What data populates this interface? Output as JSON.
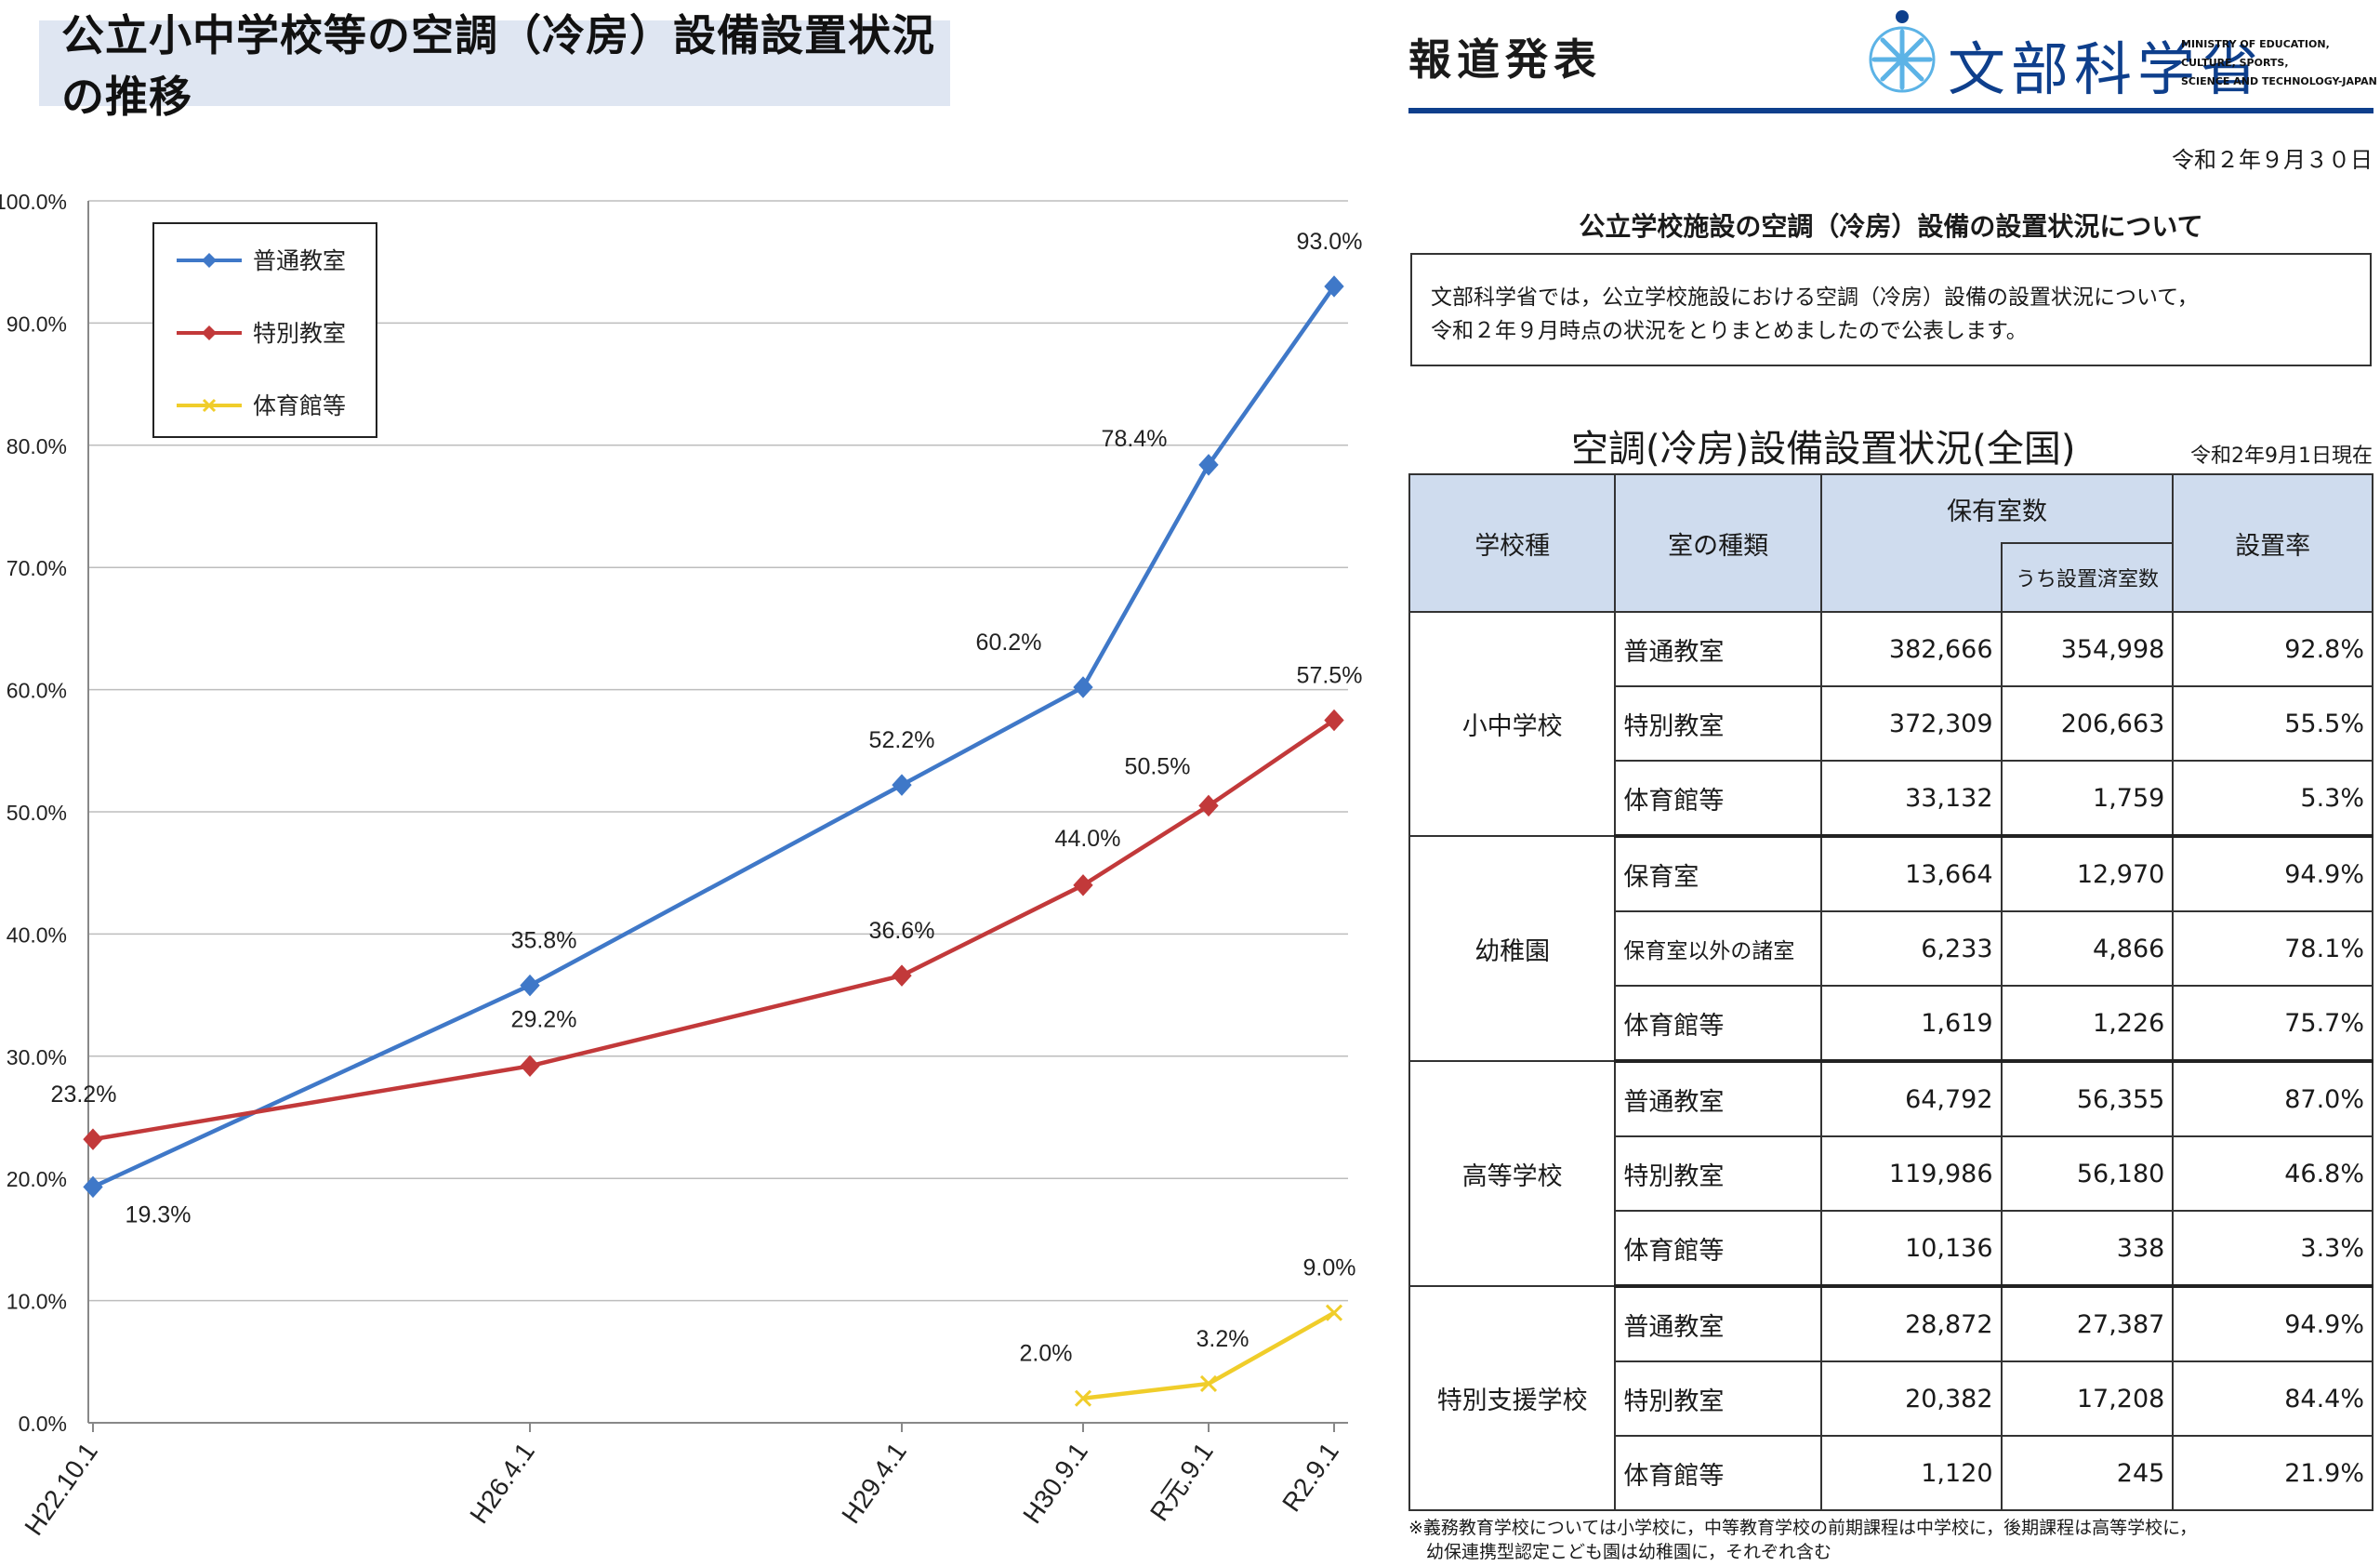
{
  "chart_title": "公立小中学校等の空調（冷房）設備設置状況の推移",
  "chart_data": {
    "type": "line",
    "categories": [
      "H22.10.1",
      "H26.4.1",
      "H29.4.1",
      "H30.9.1",
      "R元.9.1",
      "R2.9.1"
    ],
    "ylim": [
      0,
      100
    ],
    "ytick_labels": [
      "0.0%",
      "10.0%",
      "20.0%",
      "30.0%",
      "40.0%",
      "50.0%",
      "60.0%",
      "70.0%",
      "80.0%",
      "90.0%",
      "100.0%"
    ],
    "grid": true,
    "legend_position": "top-left",
    "series": [
      {
        "name": "普通教室",
        "color": "#3f78c8",
        "values": [
          19.3,
          35.8,
          52.2,
          60.2,
          78.4,
          93.0
        ],
        "labels": [
          "19.3%",
          "35.8%",
          "52.2%",
          "60.2%",
          "78.4%",
          "93.0%"
        ]
      },
      {
        "name": "特別教室",
        "color": "#c2393a",
        "values": [
          23.2,
          29.2,
          36.6,
          44.0,
          50.5,
          57.5
        ],
        "labels": [
          "23.2%",
          "29.2%",
          "36.6%",
          "44.0%",
          "50.5%",
          "57.5%"
        ]
      },
      {
        "name": "体育館等",
        "color": "#f0cd2a",
        "values": [
          null,
          null,
          null,
          2.0,
          3.2,
          9.0
        ],
        "labels": [
          "",
          "",
          "",
          "2.0%",
          "3.2%",
          "9.0%"
        ]
      }
    ]
  },
  "press": {
    "label": "報道発表",
    "ministry": "文部科学省",
    "ministry_en_1": "MINISTRY OF EDUCATION,",
    "ministry_en_2": "CULTURE, SPORTS,",
    "ministry_en_3": "SCIENCE AND TECHNOLOGY-JAPAN",
    "date": "令和２年９月３０日",
    "title": "公立学校施設の空調（冷房）設備の設置状況について",
    "body_line1": "文部科学省では，公立学校施設における空調（冷房）設備の設置状況について，",
    "body_line2": "令和２年９月時点の状況をとりまとめましたので公表します。"
  },
  "table": {
    "title": "空調(冷房)設備設置状況(全国)",
    "asof": "令和2年9月1日現在",
    "headers": {
      "school_type": "学校種",
      "room_type": "室の種類",
      "rooms_owned": "保有室数",
      "rooms_installed": "うち設置済室数",
      "rate": "設置率"
    },
    "groups": [
      {
        "name": "小中学校",
        "rows": [
          {
            "room": "普通教室",
            "owned": "382,666",
            "installed": "354,998",
            "rate": "92.8%"
          },
          {
            "room": "特別教室",
            "owned": "372,309",
            "installed": "206,663",
            "rate": "55.5%"
          },
          {
            "room": "体育館等",
            "owned": "33,132",
            "installed": "1,759",
            "rate": "5.3%"
          }
        ]
      },
      {
        "name": "幼稚園",
        "rows": [
          {
            "room": "保育室",
            "owned": "13,664",
            "installed": "12,970",
            "rate": "94.9%"
          },
          {
            "room": "保育室以外の諸室",
            "owned": "6,233",
            "installed": "4,866",
            "rate": "78.1%"
          },
          {
            "room": "体育館等",
            "owned": "1,619",
            "installed": "1,226",
            "rate": "75.7%"
          }
        ]
      },
      {
        "name": "高等学校",
        "rows": [
          {
            "room": "普通教室",
            "owned": "64,792",
            "installed": "56,355",
            "rate": "87.0%"
          },
          {
            "room": "特別教室",
            "owned": "119,986",
            "installed": "56,180",
            "rate": "46.8%"
          },
          {
            "room": "体育館等",
            "owned": "10,136",
            "installed": "338",
            "rate": "3.3%"
          }
        ]
      },
      {
        "name": "特別支援学校",
        "rows": [
          {
            "room": "普通教室",
            "owned": "28,872",
            "installed": "27,387",
            "rate": "94.9%"
          },
          {
            "room": "特別教室",
            "owned": "20,382",
            "installed": "17,208",
            "rate": "84.4%"
          },
          {
            "room": "体育館等",
            "owned": "1,120",
            "installed": "245",
            "rate": "21.9%"
          }
        ]
      }
    ],
    "footnote_1": "※義務教育学校については小学校に，中等教育学校の前期課程は中学校に，後期課程は高等学校に，",
    "footnote_2": "　幼保連携型認定こども園は幼稚園に，それぞれ含む"
  }
}
